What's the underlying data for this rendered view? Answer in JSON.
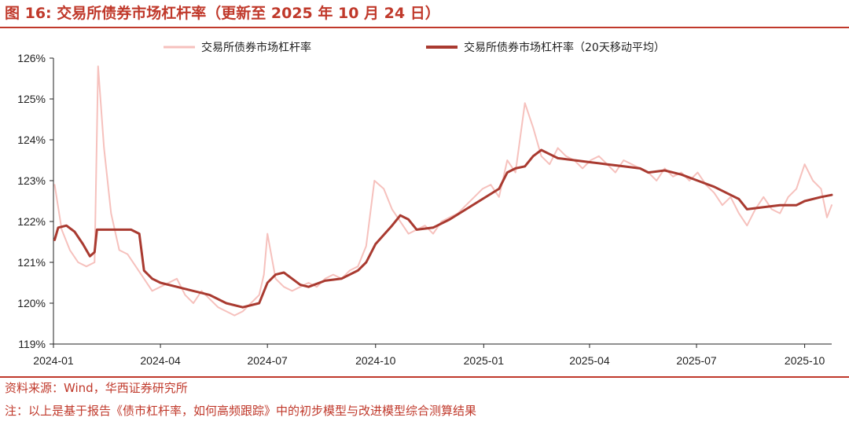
{
  "figure": {
    "title": "图 16:  交易所债券市场杠杆率（更新至 2025 年 10 月 24 日）",
    "source": "资料来源：Wind，华西证券研究所",
    "note": "注：以上是基于报告《债市杠杆率，如何高频跟踪》中的初步模型与改进模型综合测算结果"
  },
  "colors": {
    "raw": "#f6c1bd",
    "ma20": "#a93a30",
    "accent": "#c0392b"
  },
  "chart_data": {
    "type": "line",
    "title": "",
    "xlabel": "",
    "ylabel": "",
    "ylim": [
      119,
      126
    ],
    "y_ticks": [
      "119%",
      "120%",
      "121%",
      "122%",
      "123%",
      "124%",
      "125%",
      "126%"
    ],
    "x_ticks": [
      "2024-01",
      "2024-04",
      "2024-07",
      "2024-10",
      "2025-01",
      "2025-04",
      "2025-07",
      "2025-10"
    ],
    "x_range": [
      "2024-01",
      "2025-10-24"
    ],
    "legend_position": "top",
    "grid": false,
    "series": [
      {
        "name": "交易所债券市场杠杆率",
        "points": [
          [
            "2024-01-02",
            122.9
          ],
          [
            "2024-01-08",
            121.8
          ],
          [
            "2024-01-15",
            121.3
          ],
          [
            "2024-01-22",
            121.0
          ],
          [
            "2024-01-29",
            120.9
          ],
          [
            "2024-02-05",
            121.0
          ],
          [
            "2024-02-08",
            125.8
          ],
          [
            "2024-02-13",
            123.8
          ],
          [
            "2024-02-19",
            122.2
          ],
          [
            "2024-02-26",
            121.3
          ],
          [
            "2024-03-04",
            121.2
          ],
          [
            "2024-03-11",
            120.9
          ],
          [
            "2024-03-18",
            120.6
          ],
          [
            "2024-03-25",
            120.3
          ],
          [
            "2024-04-01",
            120.4
          ],
          [
            "2024-04-08",
            120.5
          ],
          [
            "2024-04-15",
            120.6
          ],
          [
            "2024-04-22",
            120.2
          ],
          [
            "2024-04-29",
            120.0
          ],
          [
            "2024-05-06",
            120.3
          ],
          [
            "2024-05-13",
            120.1
          ],
          [
            "2024-05-20",
            119.9
          ],
          [
            "2024-05-27",
            119.8
          ],
          [
            "2024-06-03",
            119.7
          ],
          [
            "2024-06-10",
            119.8
          ],
          [
            "2024-06-17",
            120.0
          ],
          [
            "2024-06-24",
            120.2
          ],
          [
            "2024-06-28",
            120.7
          ],
          [
            "2024-07-01",
            121.7
          ],
          [
            "2024-07-08",
            120.6
          ],
          [
            "2024-07-15",
            120.4
          ],
          [
            "2024-07-22",
            120.3
          ],
          [
            "2024-07-29",
            120.4
          ],
          [
            "2024-08-05",
            120.5
          ],
          [
            "2024-08-12",
            120.4
          ],
          [
            "2024-08-19",
            120.6
          ],
          [
            "2024-08-26",
            120.7
          ],
          [
            "2024-09-02",
            120.6
          ],
          [
            "2024-09-09",
            120.8
          ],
          [
            "2024-09-16",
            120.9
          ],
          [
            "2024-09-23",
            121.4
          ],
          [
            "2024-09-30",
            123.0
          ],
          [
            "2024-10-08",
            122.8
          ],
          [
            "2024-10-15",
            122.3
          ],
          [
            "2024-10-22",
            122.0
          ],
          [
            "2024-10-29",
            121.7
          ],
          [
            "2024-11-05",
            121.8
          ],
          [
            "2024-11-12",
            121.9
          ],
          [
            "2024-11-19",
            121.7
          ],
          [
            "2024-11-26",
            122.0
          ],
          [
            "2024-12-03",
            122.1
          ],
          [
            "2024-12-10",
            122.2
          ],
          [
            "2024-12-17",
            122.4
          ],
          [
            "2024-12-24",
            122.6
          ],
          [
            "2024-12-31",
            122.8
          ],
          [
            "2025-01-07",
            122.9
          ],
          [
            "2025-01-14",
            122.6
          ],
          [
            "2025-01-21",
            123.5
          ],
          [
            "2025-01-28",
            123.2
          ],
          [
            "2025-02-05",
            124.9
          ],
          [
            "2025-02-12",
            124.3
          ],
          [
            "2025-02-19",
            123.6
          ],
          [
            "2025-02-26",
            123.4
          ],
          [
            "2025-03-05",
            123.8
          ],
          [
            "2025-03-12",
            123.6
          ],
          [
            "2025-03-19",
            123.5
          ],
          [
            "2025-03-26",
            123.3
          ],
          [
            "2025-04-02",
            123.5
          ],
          [
            "2025-04-09",
            123.6
          ],
          [
            "2025-04-16",
            123.4
          ],
          [
            "2025-04-23",
            123.2
          ],
          [
            "2025-04-30",
            123.5
          ],
          [
            "2025-05-07",
            123.4
          ],
          [
            "2025-05-14",
            123.3
          ],
          [
            "2025-05-21",
            123.2
          ],
          [
            "2025-05-28",
            123.0
          ],
          [
            "2025-06-04",
            123.3
          ],
          [
            "2025-06-11",
            123.1
          ],
          [
            "2025-06-18",
            123.2
          ],
          [
            "2025-06-25",
            123.0
          ],
          [
            "2025-07-02",
            123.2
          ],
          [
            "2025-07-09",
            122.9
          ],
          [
            "2025-07-16",
            122.7
          ],
          [
            "2025-07-23",
            122.4
          ],
          [
            "2025-07-30",
            122.6
          ],
          [
            "2025-08-06",
            122.2
          ],
          [
            "2025-08-13",
            121.9
          ],
          [
            "2025-08-20",
            122.3
          ],
          [
            "2025-08-27",
            122.6
          ],
          [
            "2025-09-03",
            122.3
          ],
          [
            "2025-09-10",
            122.2
          ],
          [
            "2025-09-17",
            122.6
          ],
          [
            "2025-09-24",
            122.8
          ],
          [
            "2025-10-01",
            123.4
          ],
          [
            "2025-10-08",
            123.0
          ],
          [
            "2025-10-15",
            122.8
          ],
          [
            "2025-10-20",
            122.1
          ],
          [
            "2025-10-24",
            122.4
          ]
        ]
      },
      {
        "name": "交易所债券市场杠杆率（20天移动平均）",
        "points": [
          [
            "2024-01-02",
            121.55
          ],
          [
            "2024-01-05",
            121.85
          ],
          [
            "2024-01-12",
            121.9
          ],
          [
            "2024-01-19",
            121.75
          ],
          [
            "2024-01-26",
            121.45
          ],
          [
            "2024-02-01",
            121.15
          ],
          [
            "2024-02-05",
            121.25
          ],
          [
            "2024-02-07",
            121.8
          ],
          [
            "2024-02-29",
            121.8
          ],
          [
            "2024-03-07",
            121.8
          ],
          [
            "2024-03-14",
            121.7
          ],
          [
            "2024-03-18",
            120.8
          ],
          [
            "2024-03-25",
            120.6
          ],
          [
            "2024-04-01",
            120.5
          ],
          [
            "2024-04-15",
            120.4
          ],
          [
            "2024-04-29",
            120.3
          ],
          [
            "2024-05-13",
            120.2
          ],
          [
            "2024-05-27",
            120.0
          ],
          [
            "2024-06-10",
            119.9
          ],
          [
            "2024-06-24",
            120.0
          ],
          [
            "2024-07-01",
            120.5
          ],
          [
            "2024-07-08",
            120.7
          ],
          [
            "2024-07-15",
            120.75
          ],
          [
            "2024-07-22",
            120.6
          ],
          [
            "2024-07-29",
            120.45
          ],
          [
            "2024-08-05",
            120.4
          ],
          [
            "2024-08-19",
            120.55
          ],
          [
            "2024-09-02",
            120.6
          ],
          [
            "2024-09-16",
            120.8
          ],
          [
            "2024-09-23",
            121.0
          ],
          [
            "2024-10-01",
            121.45
          ],
          [
            "2024-10-15",
            121.9
          ],
          [
            "2024-10-22",
            122.15
          ],
          [
            "2024-10-29",
            122.05
          ],
          [
            "2024-11-05",
            121.8
          ],
          [
            "2024-11-19",
            121.85
          ],
          [
            "2024-12-03",
            122.05
          ],
          [
            "2024-12-17",
            122.3
          ],
          [
            "2024-12-31",
            122.55
          ],
          [
            "2025-01-14",
            122.8
          ],
          [
            "2025-01-21",
            123.2
          ],
          [
            "2025-01-28",
            123.3
          ],
          [
            "2025-02-05",
            123.35
          ],
          [
            "2025-02-12",
            123.6
          ],
          [
            "2025-02-19",
            123.75
          ],
          [
            "2025-02-26",
            123.65
          ],
          [
            "2025-03-05",
            123.55
          ],
          [
            "2025-03-19",
            123.5
          ],
          [
            "2025-04-02",
            123.45
          ],
          [
            "2025-04-16",
            123.4
          ],
          [
            "2025-04-30",
            123.35
          ],
          [
            "2025-05-14",
            123.3
          ],
          [
            "2025-05-21",
            123.2
          ],
          [
            "2025-06-04",
            123.25
          ],
          [
            "2025-06-18",
            123.15
          ],
          [
            "2025-07-02",
            123.0
          ],
          [
            "2025-07-16",
            122.85
          ],
          [
            "2025-07-30",
            122.65
          ],
          [
            "2025-08-06",
            122.55
          ],
          [
            "2025-08-13",
            122.3
          ],
          [
            "2025-08-27",
            122.35
          ],
          [
            "2025-09-10",
            122.4
          ],
          [
            "2025-09-24",
            122.4
          ],
          [
            "2025-10-01",
            122.5
          ],
          [
            "2025-10-15",
            122.6
          ],
          [
            "2025-10-24",
            122.65
          ]
        ]
      }
    ]
  }
}
